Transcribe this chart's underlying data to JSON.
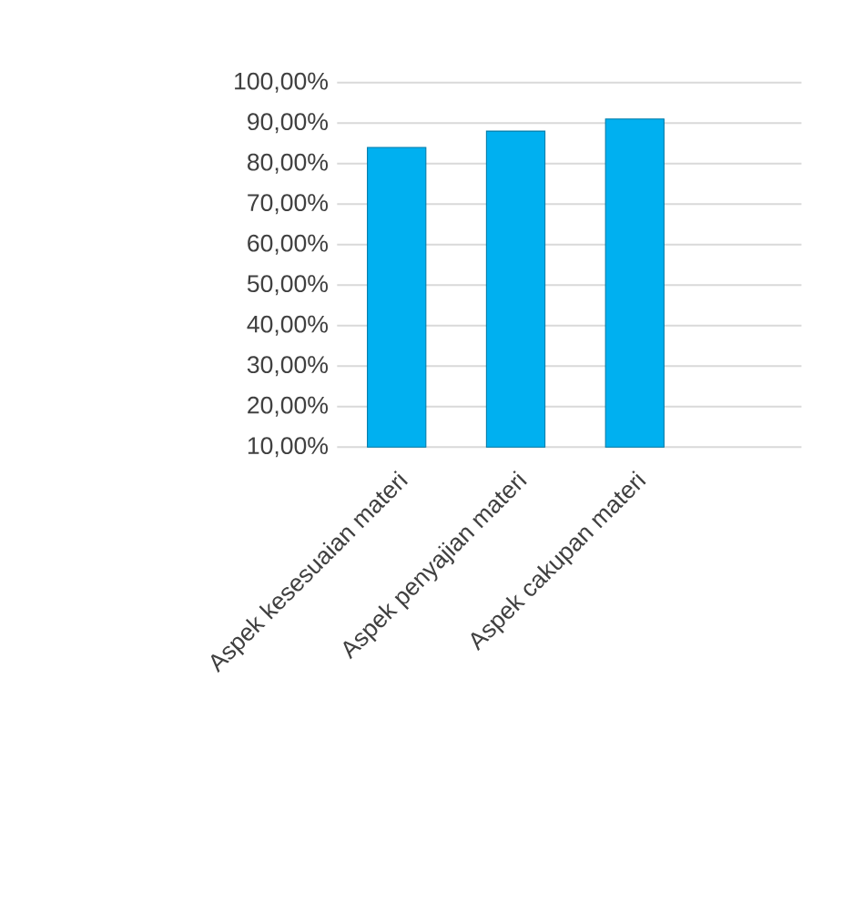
{
  "chart_data": {
    "type": "bar",
    "categories": [
      "Aspek kesesuaian materi",
      "Aspek penyajian materi",
      "Aspek cakupan materi"
    ],
    "values": [
      84,
      88,
      91
    ],
    "color": "#00b0f0",
    "ylim": [
      10,
      100
    ],
    "yticks": [
      {
        "value": 10,
        "label": "10,00%"
      },
      {
        "value": 20,
        "label": "20,00%"
      },
      {
        "value": 30,
        "label": "30,00%"
      },
      {
        "value": 40,
        "label": "40,00%"
      },
      {
        "value": 50,
        "label": "50,00%"
      },
      {
        "value": 60,
        "label": "60,00%"
      },
      {
        "value": 70,
        "label": "70,00%"
      },
      {
        "value": 80,
        "label": "80,00%"
      },
      {
        "value": 90,
        "label": "90,00%"
      },
      {
        "value": 100,
        "label": "100,00%"
      }
    ],
    "grid": "y"
  }
}
